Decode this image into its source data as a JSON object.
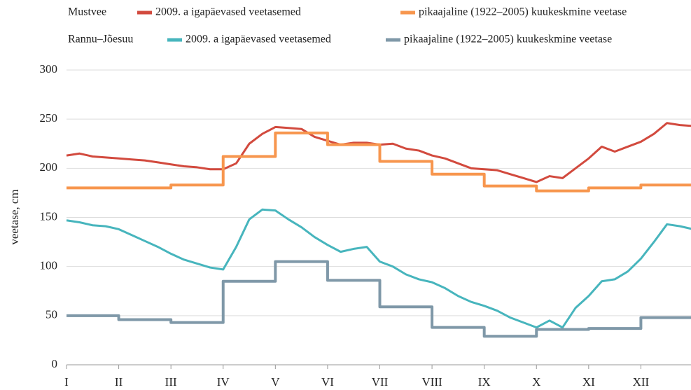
{
  "chart_data": {
    "type": "line",
    "ylabel": "veetase, cm",
    "legend_groups": [
      "Mustvee",
      "Rannu–Jõesuu"
    ],
    "xlim": [
      0,
      12
    ],
    "xticks": [
      {
        "value": 0,
        "label": "I"
      },
      {
        "value": 1,
        "label": "II"
      },
      {
        "value": 2,
        "label": "III"
      },
      {
        "value": 3,
        "label": "IV"
      },
      {
        "value": 4,
        "label": "V"
      },
      {
        "value": 5,
        "label": "VI"
      },
      {
        "value": 6,
        "label": "VII"
      },
      {
        "value": 7,
        "label": "VIII"
      },
      {
        "value": 8,
        "label": "IX"
      },
      {
        "value": 9,
        "label": "X"
      },
      {
        "value": 10,
        "label": "XI"
      },
      {
        "value": 11,
        "label": "XII"
      }
    ],
    "ylim": [
      0,
      300
    ],
    "yticks": [
      0,
      50,
      100,
      150,
      200,
      250,
      300
    ],
    "grid": true,
    "series": [
      {
        "name": "2009. a igapäevased veetasemed",
        "color": "#d24a3e",
        "step": false,
        "x": [
          0,
          0.25,
          0.5,
          0.75,
          1,
          1.25,
          1.5,
          1.75,
          2,
          2.25,
          2.5,
          2.75,
          3,
          3.25,
          3.5,
          3.75,
          4,
          4.25,
          4.5,
          4.75,
          5,
          5.25,
          5.5,
          5.75,
          6,
          6.25,
          6.5,
          6.75,
          7,
          7.25,
          7.5,
          7.75,
          8,
          8.25,
          8.5,
          8.75,
          9,
          9.25,
          9.5,
          9.75,
          10,
          10.25,
          10.5,
          10.75,
          11,
          11.25,
          11.5,
          11.75,
          12
        ],
        "values": [
          213,
          215,
          212,
          211,
          210,
          209,
          208,
          206,
          204,
          202,
          201,
          199,
          199,
          205,
          225,
          235,
          242,
          241,
          240,
          232,
          228,
          224,
          226,
          226,
          224,
          225,
          220,
          218,
          213,
          210,
          205,
          200,
          199,
          198,
          194,
          190,
          186,
          192,
          190,
          200,
          210,
          222,
          217,
          222,
          227,
          235,
          246,
          244,
          243
        ]
      },
      {
        "name": "pikaajaline (1922–2005) kuukeskmine veetase",
        "color": "#f7964e",
        "step": true,
        "x": [
          0,
          1,
          2,
          3,
          4,
          5,
          6,
          7,
          8,
          9,
          10,
          11
        ],
        "values": [
          180,
          180,
          183,
          212,
          236,
          224,
          207,
          194,
          182,
          177,
          180,
          183
        ]
      },
      {
        "name": "2009. a igapäevased veetasemed",
        "color": "#47b5bd",
        "step": false,
        "x": [
          0,
          0.25,
          0.5,
          0.75,
          1,
          1.25,
          1.5,
          1.75,
          2,
          2.25,
          2.5,
          2.75,
          3,
          3.25,
          3.5,
          3.75,
          4,
          4.25,
          4.5,
          4.75,
          5,
          5.25,
          5.5,
          5.75,
          6,
          6.25,
          6.5,
          6.75,
          7,
          7.25,
          7.5,
          7.75,
          8,
          8.25,
          8.5,
          8.75,
          9,
          9.25,
          9.5,
          9.75,
          10,
          10.25,
          10.5,
          10.75,
          11,
          11.25,
          11.5,
          11.75,
          12
        ],
        "values": [
          147,
          145,
          142,
          141,
          138,
          132,
          126,
          120,
          113,
          107,
          103,
          99,
          97,
          120,
          148,
          158,
          157,
          148,
          140,
          130,
          122,
          115,
          118,
          120,
          105,
          100,
          92,
          87,
          84,
          78,
          70,
          64,
          60,
          55,
          48,
          43,
          38,
          45,
          38,
          58,
          70,
          85,
          87,
          95,
          108,
          125,
          143,
          141,
          138
        ]
      },
      {
        "name": "pikaajaline (1922–2005) kuukeskmine veetase",
        "color": "#7f98a8",
        "step": true,
        "x": [
          0,
          1,
          2,
          3,
          4,
          5,
          6,
          7,
          8,
          9,
          10,
          11
        ],
        "values": [
          50,
          46,
          43,
          85,
          105,
          86,
          59,
          38,
          29,
          36,
          37,
          48
        ]
      }
    ]
  }
}
